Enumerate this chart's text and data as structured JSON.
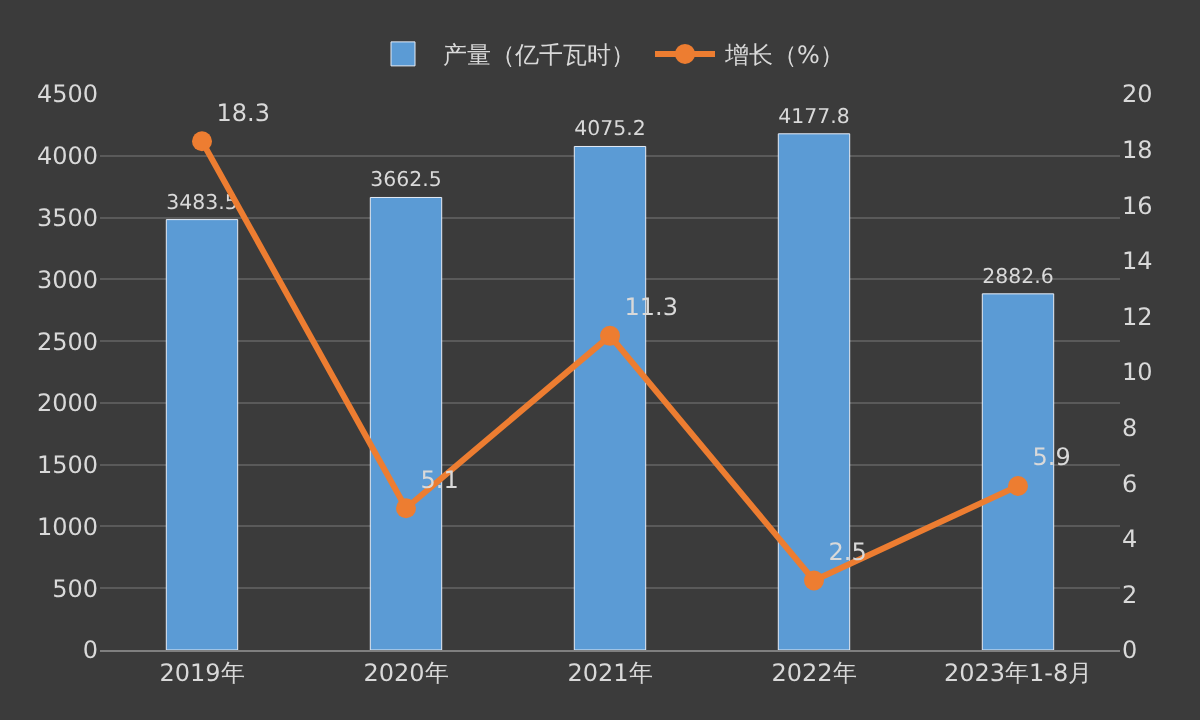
{
  "chart_data": {
    "type": "bar",
    "categories": [
      "2019年",
      "2020年",
      "2021年",
      "2022年",
      "2023年1-8月"
    ],
    "series": [
      {
        "name": "产量（亿千瓦时）",
        "color": "#5b9bd5",
        "values": [
          3483.5,
          3662.5,
          4075.2,
          4177.8,
          2882.6
        ]
      },
      {
        "name": "增长（%）",
        "type": "line",
        "axis": "y2",
        "color": "#ed7d31",
        "values": [
          18.3,
          5.1,
          11.3,
          2.5,
          5.9
        ]
      }
    ],
    "ylim": [
      0,
      4500
    ],
    "yticks": [
      0,
      500,
      1000,
      1500,
      2000,
      2500,
      3000,
      3500,
      4000,
      4500
    ],
    "y2lim": [
      0,
      20
    ],
    "y2ticks": [
      0,
      2,
      4,
      6,
      8,
      10,
      12,
      14,
      16,
      18,
      20
    ],
    "data_labels": true,
    "grid": "y",
    "legend": "top",
    "marker": "circle",
    "line_style": "solid"
  }
}
